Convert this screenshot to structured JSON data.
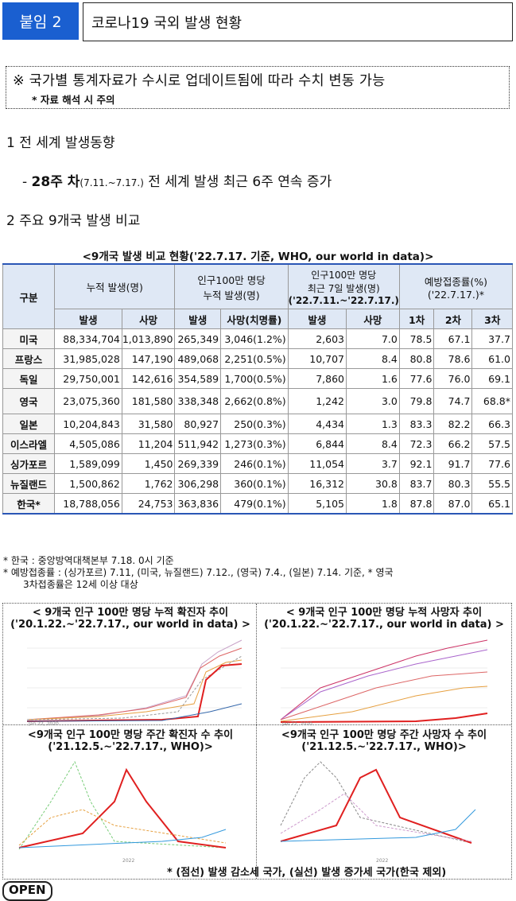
{
  "header": {
    "badge": "붙임 2",
    "title": "코로나19 국외 발생 현황"
  },
  "notice": {
    "line1": "※ 국가별 통계자료가 수시로 업데이트됨에 따라 수치 변동 가능",
    "line2": "* 자료 해석 시 주의"
  },
  "section1": {
    "title": "1  전 세계 발생동향",
    "bullet_prefix": "- ",
    "bullet_bold": "28주 차",
    "bullet_small": "(7.11.~7.17.)",
    "bullet_rest": " 전 세계 발생 최근 6주 연속 증가"
  },
  "section2": {
    "title": "2  주요 9개국 발생 비교"
  },
  "table": {
    "caption": "<9개국 발생 비교 현황('22.7.17. 기준, WHO, our world in data)>",
    "h_gubun": "구분",
    "h_cum": "누적 발생(명)",
    "h_per_million_1": "인구100만 명당",
    "h_per_million_2": "누적 발생(명)",
    "h_week_1": "인구100만 명당",
    "h_week_2": "최근 7일 발생(명)",
    "h_week_3": "('22.7.11.~'22.7.17.)",
    "h_vax_1": "예방접종률(%)",
    "h_vax_2": "('22.7.17.)*",
    "sub": [
      "발생",
      "사망",
      "발생",
      "사망(치명률)",
      "발생",
      "사망",
      "1차",
      "2차",
      "3차"
    ],
    "rows": [
      [
        "미국",
        "88,334,704",
        "1,013,890",
        "265,349",
        "3,046(1.2%)",
        "2,603",
        "7.0",
        "78.5",
        "67.1",
        "37.7"
      ],
      [
        "프랑스",
        "31,985,028",
        "147,190",
        "489,068",
        "2,251(0.5%)",
        "10,707",
        "8.4",
        "80.8",
        "78.6",
        "61.0"
      ],
      [
        "독일",
        "29,750,001",
        "142,616",
        "354,589",
        "1,700(0.5%)",
        "7,860",
        "1.6",
        "77.6",
        "76.0",
        "69.1"
      ],
      [
        "영국",
        "23,075,360",
        "181,580",
        "338,348",
        "2,662(0.8%)",
        "1,242",
        "3.0",
        "79.8",
        "74.7",
        "68.8*"
      ],
      [
        "일본",
        "10,204,843",
        "31,580",
        "80,927",
        "250(0.3%)",
        "4,434",
        "1.3",
        "83.3",
        "82.2",
        "66.3"
      ],
      [
        "이스라엘",
        "4,505,086",
        "11,204",
        "511,942",
        "1,273(0.3%)",
        "6,844",
        "8.4",
        "72.3",
        "66.2",
        "57.5"
      ],
      [
        "싱가포르",
        "1,589,099",
        "1,450",
        "269,339",
        "246(0.1%)",
        "11,054",
        "3.7",
        "92.1",
        "91.7",
        "77.6"
      ],
      [
        "뉴질랜드",
        "1,500,862",
        "1,762",
        "306,298",
        "360(0.1%)",
        "16,312",
        "30.8",
        "83.7",
        "80.3",
        "55.5"
      ],
      [
        "한국*",
        "18,788,056",
        "24,753",
        "363,836",
        "479(0.1%)",
        "5,105",
        "1.8",
        "87.8",
        "87.0",
        "65.1"
      ]
    ]
  },
  "footnotes": {
    "f1": "* 한국 : 중앙방역대책본부 7.18. 0시 기준",
    "f2": "* 예방접종률 : (싱가포르) 7.11, (미국, 뉴질랜드) 7.12., (영국) 7.4., (일본) 7.14. 기준, * 영국",
    "f3": "3차접종률은 12세 이상 대상"
  },
  "charts": {
    "c1_l1": "< 9개국 인구 100만 명당 누적 확진자 추이",
    "c1_l2": "('20.1.22.~'22.7.17., our world in data) >",
    "c2_l1": "< 9개국 인구 100만 명당 누적 사망자 추이",
    "c2_l2": "('20.1.22.~'22.7.17., our world in data) >",
    "c3_l1": "<9개국 인구 100만 명당 주간 확진자 수 추이",
    "c3_l2": "('21.12.5.~'22.7.17., WHO)>",
    "c4_l1": "<9개국 인구 100만 명당 주간 사망자 수 추이",
    "c4_l2": "('21.12.5.~'22.7.17., WHO)>",
    "footer": "* (점선) 발생 감소세 국가, (실선) 발생 증가세 국가(한국 제외)"
  },
  "logo": {
    "open": "OPEN"
  },
  "colors": {
    "badge": "#1a5fd0",
    "table_rule": "#2a56b5",
    "header_fill": "#dfe8f5",
    "korea_line": "#e02020"
  }
}
